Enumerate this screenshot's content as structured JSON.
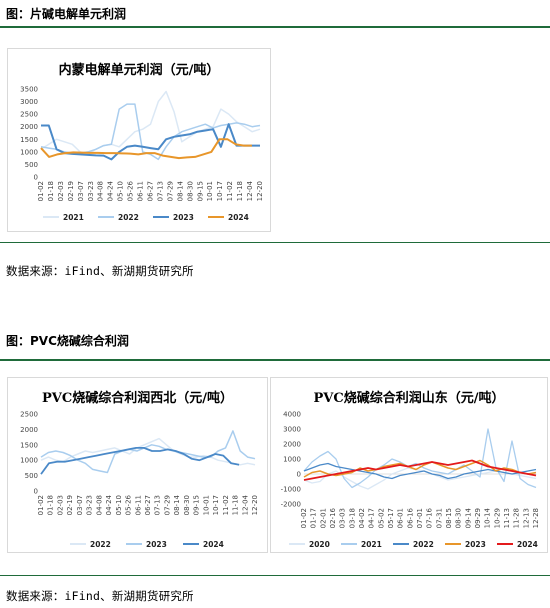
{
  "figures": [
    {
      "title": "图：片碱电解单元利润",
      "source": "数据来源：iFind、新湖期货研究所"
    },
    {
      "title": "图：PVC烧碱综合利润",
      "source": "数据来源：iFind、新湖期货研究所"
    }
  ],
  "chart_data": [
    {
      "type": "line",
      "title": "内蒙电解单元利润（元/吨）",
      "ylim": [
        0,
        3500
      ],
      "yticks": [
        "3500",
        "3000",
        "2500",
        "2000",
        "1500",
        "1000",
        "500",
        "0"
      ],
      "xticks": [
        "01-02",
        "01-18",
        "02-03",
        "02-19",
        "03-07",
        "03-23",
        "04-08",
        "04-24",
        "05-10",
        "05-26",
        "06-11",
        "06-27",
        "07-13",
        "07-29",
        "08-14",
        "08-30",
        "09-15",
        "10-01",
        "10-17",
        "11-02",
        "11-18",
        "12-04",
        "12-20"
      ],
      "legend_position": "bottom",
      "series": [
        {
          "name": "2021",
          "color": "#dbe8f5",
          "values": [
            1100,
            1300,
            1500,
            1400,
            1300,
            1000,
            900,
            1100,
            1250,
            1300,
            1200,
            1500,
            1800,
            1900,
            2100,
            3000,
            3400,
            2600,
            1400,
            1600,
            1800,
            1900,
            2000,
            2700,
            2500,
            2200,
            2000,
            1800,
            1900
          ]
        },
        {
          "name": "2022",
          "color": "#a9cdee",
          "values": [
            1200,
            1150,
            1100,
            1000,
            950,
            950,
            1000,
            1100,
            1250,
            1300,
            2700,
            2900,
            2900,
            1000,
            900,
            700,
            1200,
            1600,
            1800,
            1900,
            2000,
            2100,
            1950,
            2050,
            2100,
            2150,
            2100,
            2000,
            2050
          ]
        },
        {
          "name": "2023",
          "color": "#4a89c8",
          "values": [
            2050,
            2050,
            1100,
            950,
            920,
            900,
            880,
            860,
            850,
            700,
            1000,
            1200,
            1250,
            1200,
            1150,
            1100,
            1500,
            1600,
            1650,
            1700,
            1800,
            1850,
            1900,
            1200,
            2100,
            1250,
            1250,
            1250,
            1250
          ]
        },
        {
          "name": "2024",
          "color": "#e8962a",
          "values": [
            1150,
            800,
            900,
            950,
            980,
            970,
            960,
            960,
            950,
            950,
            940,
            930,
            900,
            950,
            950,
            850,
            800,
            750,
            780,
            800,
            900,
            1000,
            1500,
            1500,
            1300,
            1250,
            1250
          ]
        }
      ]
    },
    {
      "type": "line",
      "title": "PVC烧碱综合利润西北（元/吨）",
      "ylim": [
        0,
        2500
      ],
      "yticks": [
        "2500",
        "2000",
        "1500",
        "1000",
        "500",
        "0"
      ],
      "xticks": [
        "01-02",
        "01-18",
        "02-03",
        "02-19",
        "03-07",
        "03-23",
        "04-08",
        "04-24",
        "05-10",
        "05-26",
        "06-11",
        "06-27",
        "07-13",
        "07-29",
        "08-14",
        "08-30",
        "09-15",
        "10-01",
        "10-17",
        "11-02",
        "11-18",
        "12-04",
        "12-20"
      ],
      "legend_position": "bottom",
      "series": [
        {
          "name": "2022",
          "color": "#dbe8f5",
          "values": [
            1000,
            1100,
            1000,
            950,
            1100,
            1200,
            1300,
            1250,
            1300,
            1350,
            1400,
            1300,
            1200,
            1400,
            1500,
            1600,
            1700,
            1500,
            1300,
            1200,
            1100,
            1100,
            1150,
            1100,
            1000,
            950,
            900,
            850,
            900,
            850
          ]
        },
        {
          "name": "2023",
          "color": "#a9cdee",
          "values": [
            1100,
            1250,
            1300,
            1250,
            1150,
            1000,
            900,
            700,
            650,
            600,
            1200,
            1300,
            1350,
            1300,
            1400,
            1500,
            1450,
            1350,
            1300,
            1250,
            1200,
            1150,
            1100,
            1100,
            1300,
            1400,
            1950,
            1300,
            1100,
            1050
          ]
        },
        {
          "name": "2024",
          "color": "#4a89c8",
          "values": [
            550,
            900,
            950,
            950,
            1000,
            1050,
            1100,
            1150,
            1200,
            1250,
            1300,
            1350,
            1400,
            1400,
            1300,
            1300,
            1350,
            1300,
            1200,
            1050,
            1000,
            1100,
            1200,
            1150,
            900,
            850
          ]
        }
      ]
    },
    {
      "type": "line",
      "title": "PVC烧碱综合利润山东（元/吨）",
      "ylim": [
        -2000,
        4000
      ],
      "yticks": [
        "4000",
        "3000",
        "2000",
        "1000",
        "0",
        "-1000",
        "-2000"
      ],
      "xticks": [
        "01-02",
        "01-17",
        "02-01",
        "02-16",
        "03-03",
        "03-18",
        "04-02",
        "04-17",
        "05-02",
        "05-17",
        "06-01",
        "06-16",
        "07-01",
        "07-16",
        "07-31",
        "08-15",
        "08-30",
        "09-14",
        "09-29",
        "10-14",
        "10-29",
        "11-13",
        "11-28",
        "12-13",
        "12-28"
      ],
      "legend_position": "bottom",
      "series": [
        {
          "name": "2020",
          "color": "#dbe8f5",
          "values": [
            -400,
            -600,
            -500,
            0,
            200,
            -200,
            -500,
            -800,
            -1000,
            -700,
            -400,
            0,
            200,
            400,
            300,
            200,
            0,
            -200,
            -400,
            -300,
            -200,
            -100,
            0,
            100,
            200,
            100,
            0,
            -100,
            -200,
            -300
          ]
        },
        {
          "name": "2021",
          "color": "#a9cdee",
          "values": [
            200,
            800,
            1200,
            1500,
            1000,
            -300,
            -900,
            -600,
            -200,
            300,
            600,
            1000,
            800,
            500,
            700,
            400,
            200,
            100,
            0,
            300,
            600,
            200,
            -200,
            3000,
            400,
            -500,
            2200,
            -300,
            -700,
            -900
          ]
        },
        {
          "name": "2022",
          "color": "#4a89c8",
          "values": [
            200,
            400,
            600,
            700,
            500,
            400,
            300,
            200,
            100,
            0,
            -200,
            -300,
            -100,
            0,
            100,
            200,
            0,
            -100,
            -300,
            -200,
            0,
            100,
            200,
            300,
            200,
            100,
            0,
            100,
            200,
            300
          ]
        },
        {
          "name": "2023",
          "color": "#e8962a",
          "values": [
            -200,
            100,
            200,
            0,
            -100,
            0,
            100,
            400,
            200,
            300,
            500,
            600,
            700,
            500,
            300,
            600,
            800,
            600,
            400,
            300,
            500,
            700,
            900,
            600,
            200,
            400,
            300,
            100,
            0,
            100
          ]
        },
        {
          "name": "2024",
          "color": "#e31a1c",
          "values": [
            -400,
            -300,
            -200,
            -100,
            0,
            100,
            200,
            300,
            400,
            300,
            400,
            500,
            600,
            500,
            600,
            700,
            800,
            700,
            600,
            700,
            800,
            900,
            700,
            500,
            400,
            300,
            200,
            100,
            0,
            -100
          ]
        }
      ]
    }
  ]
}
